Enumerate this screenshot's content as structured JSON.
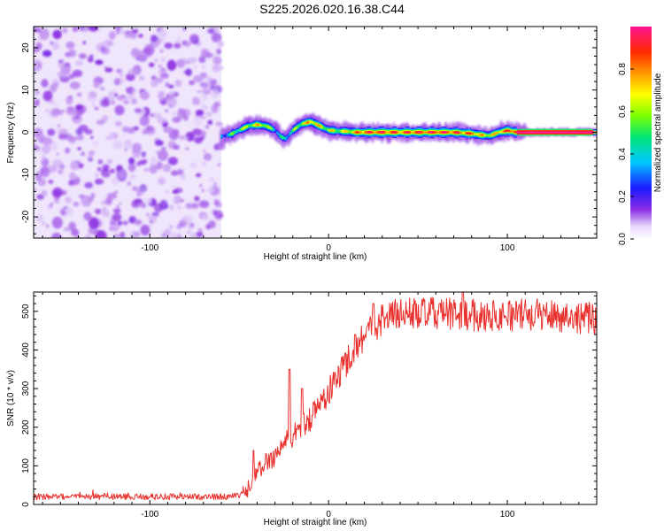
{
  "title": "S225.2026.020.16.38.C44",
  "colors": {
    "snr_line": "#e8302c",
    "noise_purple": "#7a22e8",
    "frame": "#000000"
  },
  "chart_data": [
    {
      "type": "heatmap",
      "name": "spectrogram",
      "xlabel": "Height of straight line (km)",
      "ylabel": "Frequency (Hz)",
      "xlim": [
        -165,
        150
      ],
      "ylim": [
        -25,
        25
      ],
      "xticks": [
        -100,
        0,
        100
      ],
      "yticks": [
        -20,
        -10,
        0,
        10,
        20
      ],
      "colorbar": {
        "label": "Normalized spectral amplitude",
        "range": [
          0.0,
          1.0
        ],
        "ticks": [
          0.0,
          0.2,
          0.4,
          0.6,
          0.8
        ]
      },
      "noise_region_x": [
        -165,
        -60
      ],
      "signal_track": {
        "x": [
          -60,
          -55,
          -50,
          -45,
          -40,
          -35,
          -30,
          -27,
          -24,
          -20,
          -15,
          -10,
          -5,
          0,
          5,
          10,
          15,
          20,
          30,
          40,
          50,
          60,
          70,
          80,
          85,
          90,
          95,
          100,
          105,
          110,
          120,
          130,
          140,
          150
        ],
        "frequency_hz": [
          -1,
          -0.5,
          0.5,
          1.5,
          1.8,
          1.5,
          0.5,
          -1,
          -1.5,
          0.5,
          2.0,
          2.5,
          1.5,
          0.5,
          0.3,
          0.2,
          0.0,
          0.0,
          0.0,
          0.0,
          0.0,
          0.0,
          0.0,
          -0.3,
          -0.6,
          -0.8,
          0.0,
          0.4,
          0.0,
          0.0,
          0.0,
          0.0,
          0.0,
          0.0
        ],
        "amplitude": [
          0.3,
          0.45,
          0.55,
          0.6,
          0.7,
          0.6,
          0.45,
          0.4,
          0.4,
          0.5,
          0.65,
          0.75,
          0.7,
          0.6,
          0.6,
          0.65,
          0.75,
          0.85,
          0.9,
          0.85,
          0.88,
          0.9,
          0.85,
          0.8,
          0.7,
          0.65,
          0.75,
          0.85,
          0.95,
          1.0,
          1.0,
          1.0,
          1.0,
          1.0
        ]
      }
    },
    {
      "type": "line",
      "name": "snr",
      "xlabel": "Height of straight line (km)",
      "ylabel": "SNR (10 * v/v)",
      "xlim": [
        -165,
        150
      ],
      "ylim": [
        0,
        550
      ],
      "xticks": [
        -100,
        0,
        100
      ],
      "yticks": [
        0,
        100,
        200,
        300,
        400,
        500
      ],
      "trend": {
        "x": [
          -165,
          -100,
          -60,
          -50,
          -45,
          -40,
          -35,
          -30,
          -25,
          -20,
          -15,
          -10,
          -5,
          0,
          5,
          10,
          15,
          20,
          25,
          30,
          35,
          40,
          60,
          80,
          100,
          120,
          150
        ],
        "y": [
          20,
          20,
          20,
          22,
          40,
          80,
          110,
          125,
          160,
          175,
          200,
          225,
          260,
          290,
          330,
          370,
          410,
          440,
          460,
          480,
          490,
          495,
          495,
          490,
          490,
          492,
          480
        ]
      },
      "noise_amplitude": 35,
      "spikes": [
        {
          "x": -42,
          "y": 140
        },
        {
          "x": -22,
          "y": 350
        },
        {
          "x": -15,
          "y": 300
        },
        {
          "x": 15,
          "y": 440
        },
        {
          "x": 25,
          "y": 520
        },
        {
          "x": 75,
          "y": 550
        }
      ]
    }
  ]
}
